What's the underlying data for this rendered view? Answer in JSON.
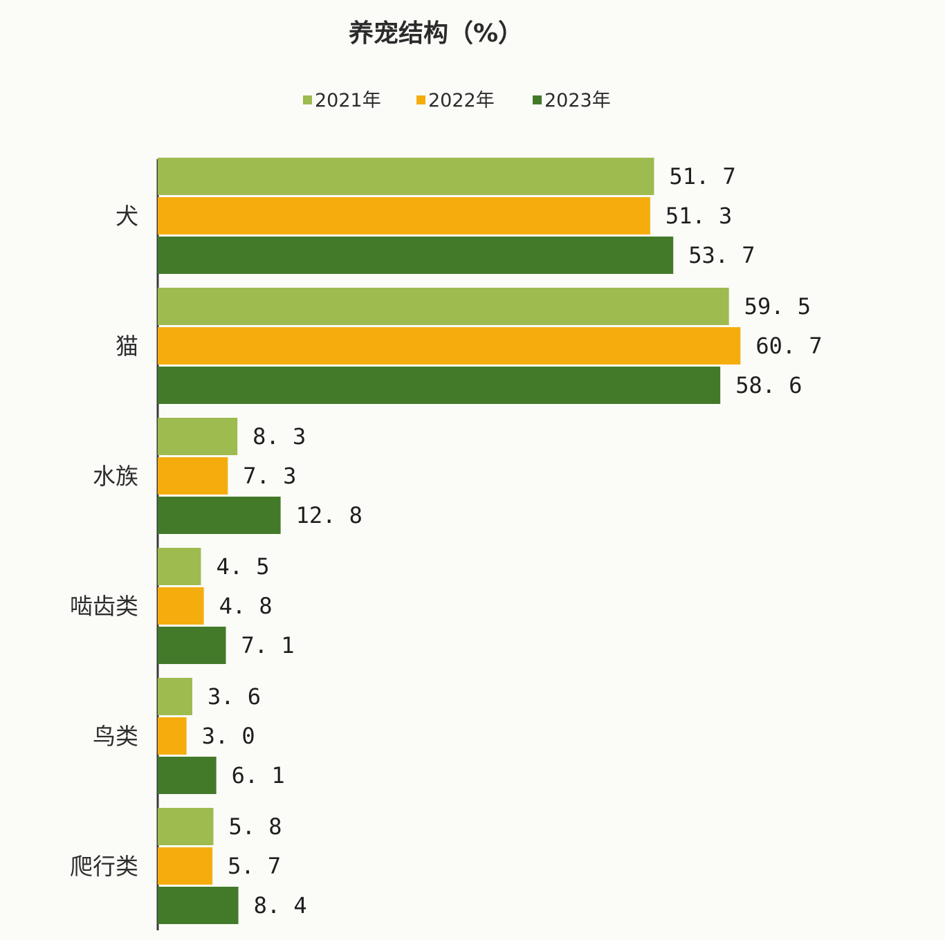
{
  "chart_data": {
    "type": "bar",
    "orientation": "horizontal",
    "title": "养宠结构（%）",
    "categories": [
      "犬",
      "猫",
      "水族",
      "啮齿类",
      "鸟类",
      "爬行类"
    ],
    "series": [
      {
        "name": "2021年",
        "color": "#9dbb4f",
        "values": [
          51.7,
          59.5,
          8.3,
          4.5,
          3.6,
          5.8
        ],
        "labels": [
          "51. 7",
          "59. 5",
          "8. 3",
          "4. 5",
          "3. 6",
          "5. 8"
        ]
      },
      {
        "name": "2022年",
        "color": "#f5ad0e",
        "values": [
          51.3,
          60.7,
          7.3,
          4.8,
          3.0,
          5.7
        ],
        "labels": [
          "51. 3",
          "60. 7",
          "7. 3",
          "4. 8",
          "3. 0",
          "5. 7"
        ]
      },
      {
        "name": "2023年",
        "color": "#427a2a",
        "values": [
          53.7,
          58.6,
          12.8,
          7.1,
          6.1,
          8.4
        ],
        "labels": [
          "53. 7",
          "58. 6",
          "12. 8",
          "7. 1",
          "6. 1",
          "8. 4"
        ]
      }
    ],
    "xlim": [
      0,
      65
    ],
    "legend_position": "top",
    "grid": false
  }
}
